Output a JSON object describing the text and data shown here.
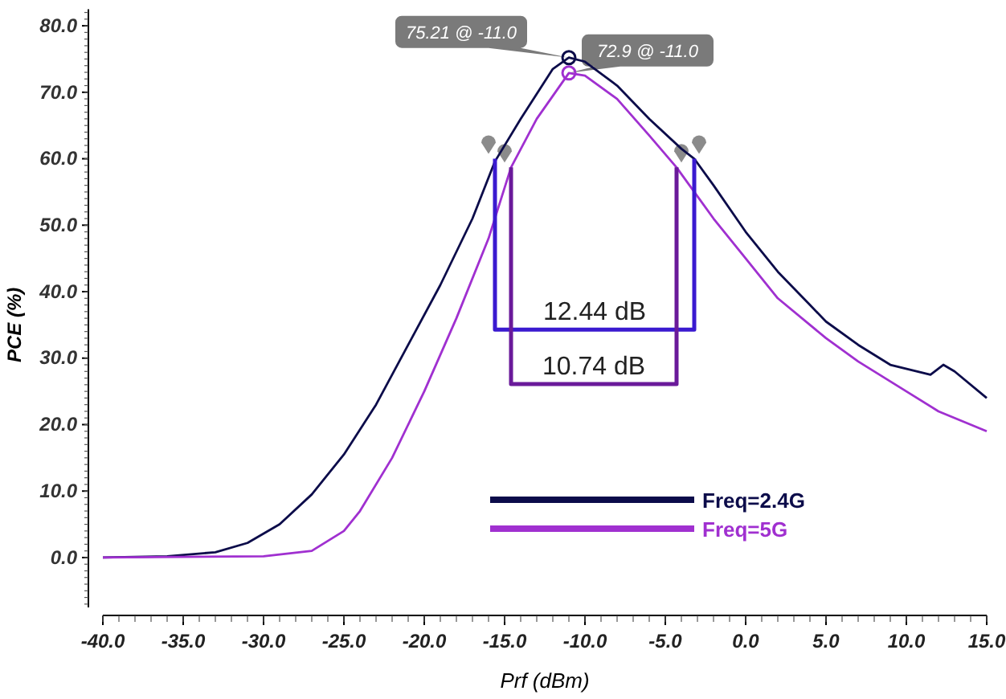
{
  "chart_data": {
    "type": "line",
    "xlabel": "Prf (dBm)",
    "ylabel": "PCE (%)",
    "xlim": [
      -40,
      15
    ],
    "xticks": [
      {
        "value": -40,
        "label": "-40.0"
      },
      {
        "value": -35,
        "label": "-35.0"
      },
      {
        "value": -30,
        "label": "-30.0"
      },
      {
        "value": -25,
        "label": "-25.0"
      },
      {
        "value": -20,
        "label": "-20.0"
      },
      {
        "value": -15,
        "label": "-15.0"
      },
      {
        "value": -10,
        "label": "-10.0"
      },
      {
        "value": -5,
        "label": "-5.0"
      },
      {
        "value": 0,
        "label": "0.0"
      },
      {
        "value": 5,
        "label": "5.0"
      },
      {
        "value": 10,
        "label": "10.0"
      },
      {
        "value": 15,
        "label": "15.0"
      }
    ],
    "ylim": [
      -7.5,
      82.5
    ],
    "yticks": [
      {
        "value": 0,
        "label": "0.0"
      },
      {
        "value": 10,
        "label": "10.0"
      },
      {
        "value": 20,
        "label": "20.0"
      },
      {
        "value": 30,
        "label": "30.0"
      },
      {
        "value": 40,
        "label": "40.0"
      },
      {
        "value": 50,
        "label": "50.0"
      },
      {
        "value": 60,
        "label": "60.0"
      },
      {
        "value": 70,
        "label": "70.0"
      },
      {
        "value": 80,
        "label": "80.0"
      }
    ],
    "grid": false,
    "legend": "bottom",
    "marker": "none",
    "line_style": "solid",
    "series": [
      {
        "name": "Freq=2.4G",
        "color": "#0c0c4a",
        "x": [
          -40,
          -36,
          -33,
          -31,
          -29,
          -27,
          -25,
          -23,
          -21,
          -19,
          -17,
          -15.6,
          -14,
          -12,
          -11,
          -10,
          -8,
          -6,
          -4,
          -3.2,
          -2,
          0,
          2,
          4,
          5,
          7,
          9,
          11.5,
          12.3,
          13,
          15
        ],
        "values": [
          0,
          0.2,
          0.8,
          2.2,
          5,
          9.5,
          15.5,
          23,
          32,
          41,
          51,
          59.6,
          66,
          73.5,
          75.21,
          74.6,
          71,
          66,
          61.5,
          60,
          56,
          49,
          43,
          38,
          35.5,
          32,
          29,
          27.5,
          29,
          28,
          24
        ]
      },
      {
        "name": "Freq=5G",
        "color": "#a030d0",
        "x": [
          -40,
          -30,
          -27,
          -25,
          -24,
          -22,
          -20,
          -18,
          -16,
          -14.6,
          -13,
          -11,
          -10,
          -8,
          -6,
          -4.3,
          -2,
          0,
          2,
          5,
          7,
          10,
          12,
          15
        ],
        "values": [
          0,
          0.2,
          1,
          4,
          7,
          15,
          25,
          36,
          48,
          58.7,
          66,
          72.9,
          72.5,
          69,
          63.5,
          58.7,
          51,
          45,
          39,
          33,
          29.5,
          25,
          22,
          19
        ]
      },
      {
        "color": "#3a1ad0",
        "x": [
          -15.6,
          -15.6,
          -3.2,
          -3.2
        ],
        "values": [
          60,
          34.3,
          34.3,
          60
        ]
      },
      {
        "color": "#6a1a9a",
        "x": [
          -14.6,
          -14.6,
          -4.3,
          -4.3
        ],
        "values": [
          58.7,
          26.1,
          26.1,
          58.7
        ]
      }
    ],
    "annotations": [
      "75.21 @ -11.0",
      "72.9 @ -11.0",
      "12.44 dB",
      "10.74 dB"
    ]
  }
}
